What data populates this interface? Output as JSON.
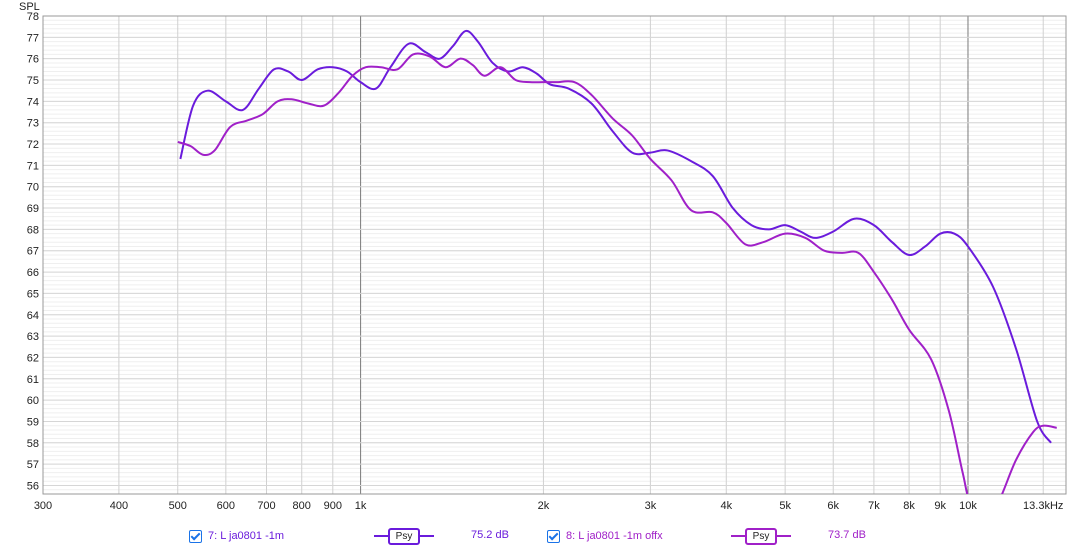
{
  "chart_data": {
    "type": "line",
    "ylabel": "SPL",
    "xunit": "Hz",
    "xscale": "log",
    "xlim": [
      300,
      14500
    ],
    "ylim": [
      55.6,
      78
    ],
    "x_ticks": [
      {
        "value": 300,
        "label": "300"
      },
      {
        "value": 400,
        "label": "400"
      },
      {
        "value": 500,
        "label": "500"
      },
      {
        "value": 600,
        "label": "600"
      },
      {
        "value": 700,
        "label": "700"
      },
      {
        "value": 800,
        "label": "800"
      },
      {
        "value": 900,
        "label": "900"
      },
      {
        "value": 1000,
        "label": "1k"
      },
      {
        "value": 2000,
        "label": "2k"
      },
      {
        "value": 3000,
        "label": "3k"
      },
      {
        "value": 4000,
        "label": "4k"
      },
      {
        "value": 5000,
        "label": "5k"
      },
      {
        "value": 6000,
        "label": "6k"
      },
      {
        "value": 7000,
        "label": "7k"
      },
      {
        "value": 8000,
        "label": "8k"
      },
      {
        "value": 9000,
        "label": "9k"
      },
      {
        "value": 10000,
        "label": "10k"
      },
      {
        "value": 13300,
        "label": "13.3kHz"
      }
    ],
    "y_ticks": [
      56,
      57,
      58,
      59,
      60,
      61,
      62,
      63,
      64,
      65,
      66,
      67,
      68,
      69,
      70,
      71,
      72,
      73,
      74,
      75,
      76,
      77,
      78
    ],
    "grid": true,
    "series": [
      {
        "name": "7: L ja0801 -1m",
        "color": "#6a1bdc",
        "points": [
          [
            505,
            71.3
          ],
          [
            530,
            73.8
          ],
          [
            560,
            74.5
          ],
          [
            600,
            74.0
          ],
          [
            640,
            73.6
          ],
          [
            680,
            74.6
          ],
          [
            720,
            75.5
          ],
          [
            760,
            75.4
          ],
          [
            800,
            75.0
          ],
          [
            850,
            75.5
          ],
          [
            900,
            75.6
          ],
          [
            950,
            75.4
          ],
          [
            1000,
            74.9
          ],
          [
            1060,
            74.6
          ],
          [
            1120,
            75.6
          ],
          [
            1200,
            76.7
          ],
          [
            1280,
            76.3
          ],
          [
            1350,
            76.0
          ],
          [
            1420,
            76.6
          ],
          [
            1490,
            77.3
          ],
          [
            1560,
            76.8
          ],
          [
            1650,
            75.8
          ],
          [
            1750,
            75.4
          ],
          [
            1850,
            75.6
          ],
          [
            1950,
            75.3
          ],
          [
            2050,
            74.8
          ],
          [
            2200,
            74.6
          ],
          [
            2400,
            73.9
          ],
          [
            2600,
            72.6
          ],
          [
            2800,
            71.6
          ],
          [
            3000,
            71.6
          ],
          [
            3200,
            71.7
          ],
          [
            3500,
            71.2
          ],
          [
            3800,
            70.5
          ],
          [
            4100,
            69.0
          ],
          [
            4400,
            68.2
          ],
          [
            4700,
            68.0
          ],
          [
            5000,
            68.2
          ],
          [
            5300,
            67.9
          ],
          [
            5600,
            67.6
          ],
          [
            6000,
            67.9
          ],
          [
            6500,
            68.5
          ],
          [
            7000,
            68.2
          ],
          [
            7500,
            67.4
          ],
          [
            8000,
            66.8
          ],
          [
            8500,
            67.2
          ],
          [
            9000,
            67.8
          ],
          [
            9500,
            67.8
          ],
          [
            10000,
            67.2
          ],
          [
            11000,
            65.3
          ],
          [
            12000,
            62.4
          ],
          [
            13000,
            59.0
          ],
          [
            13700,
            58.0
          ]
        ]
      },
      {
        "name": "8: L ja0801 -1m offx",
        "color": "#a020c8",
        "points": [
          [
            500,
            72.1
          ],
          [
            525,
            71.9
          ],
          [
            550,
            71.5
          ],
          [
            575,
            71.7
          ],
          [
            610,
            72.8
          ],
          [
            650,
            73.1
          ],
          [
            690,
            73.4
          ],
          [
            730,
            74.0
          ],
          [
            770,
            74.1
          ],
          [
            820,
            73.9
          ],
          [
            870,
            73.8
          ],
          [
            920,
            74.4
          ],
          [
            970,
            75.2
          ],
          [
            1020,
            75.6
          ],
          [
            1080,
            75.6
          ],
          [
            1150,
            75.5
          ],
          [
            1220,
            76.2
          ],
          [
            1300,
            76.1
          ],
          [
            1380,
            75.6
          ],
          [
            1460,
            76.0
          ],
          [
            1530,
            75.7
          ],
          [
            1600,
            75.2
          ],
          [
            1700,
            75.6
          ],
          [
            1800,
            75.0
          ],
          [
            1900,
            74.9
          ],
          [
            2000,
            74.9
          ],
          [
            2100,
            74.9
          ],
          [
            2250,
            74.9
          ],
          [
            2400,
            74.3
          ],
          [
            2600,
            73.2
          ],
          [
            2800,
            72.4
          ],
          [
            3000,
            71.3
          ],
          [
            3250,
            70.3
          ],
          [
            3500,
            68.9
          ],
          [
            3800,
            68.8
          ],
          [
            4000,
            68.3
          ],
          [
            4300,
            67.3
          ],
          [
            4600,
            67.4
          ],
          [
            5000,
            67.8
          ],
          [
            5400,
            67.6
          ],
          [
            5800,
            67.0
          ],
          [
            6200,
            66.9
          ],
          [
            6600,
            66.9
          ],
          [
            7000,
            66.0
          ],
          [
            7500,
            64.7
          ],
          [
            8000,
            63.3
          ],
          [
            8700,
            61.9
          ],
          [
            9300,
            59.5
          ],
          [
            9800,
            56.6
          ],
          [
            10100,
            55.2
          ],
          [
            10800,
            54.5
          ],
          [
            11300,
            55.4
          ],
          [
            12000,
            57.2
          ],
          [
            12800,
            58.5
          ],
          [
            13300,
            58.8
          ],
          [
            14000,
            58.7
          ]
        ]
      }
    ],
    "legend": [
      {
        "checkbox": true,
        "label": "7: L ja0801 -1m",
        "psy": "Psy",
        "level": "75.2 dB",
        "color": "#6a1bdc"
      },
      {
        "checkbox": true,
        "label": "8: L ja0801 -1m offx",
        "psy": "Psy",
        "level": "73.7 dB",
        "color": "#a020c8"
      }
    ]
  }
}
